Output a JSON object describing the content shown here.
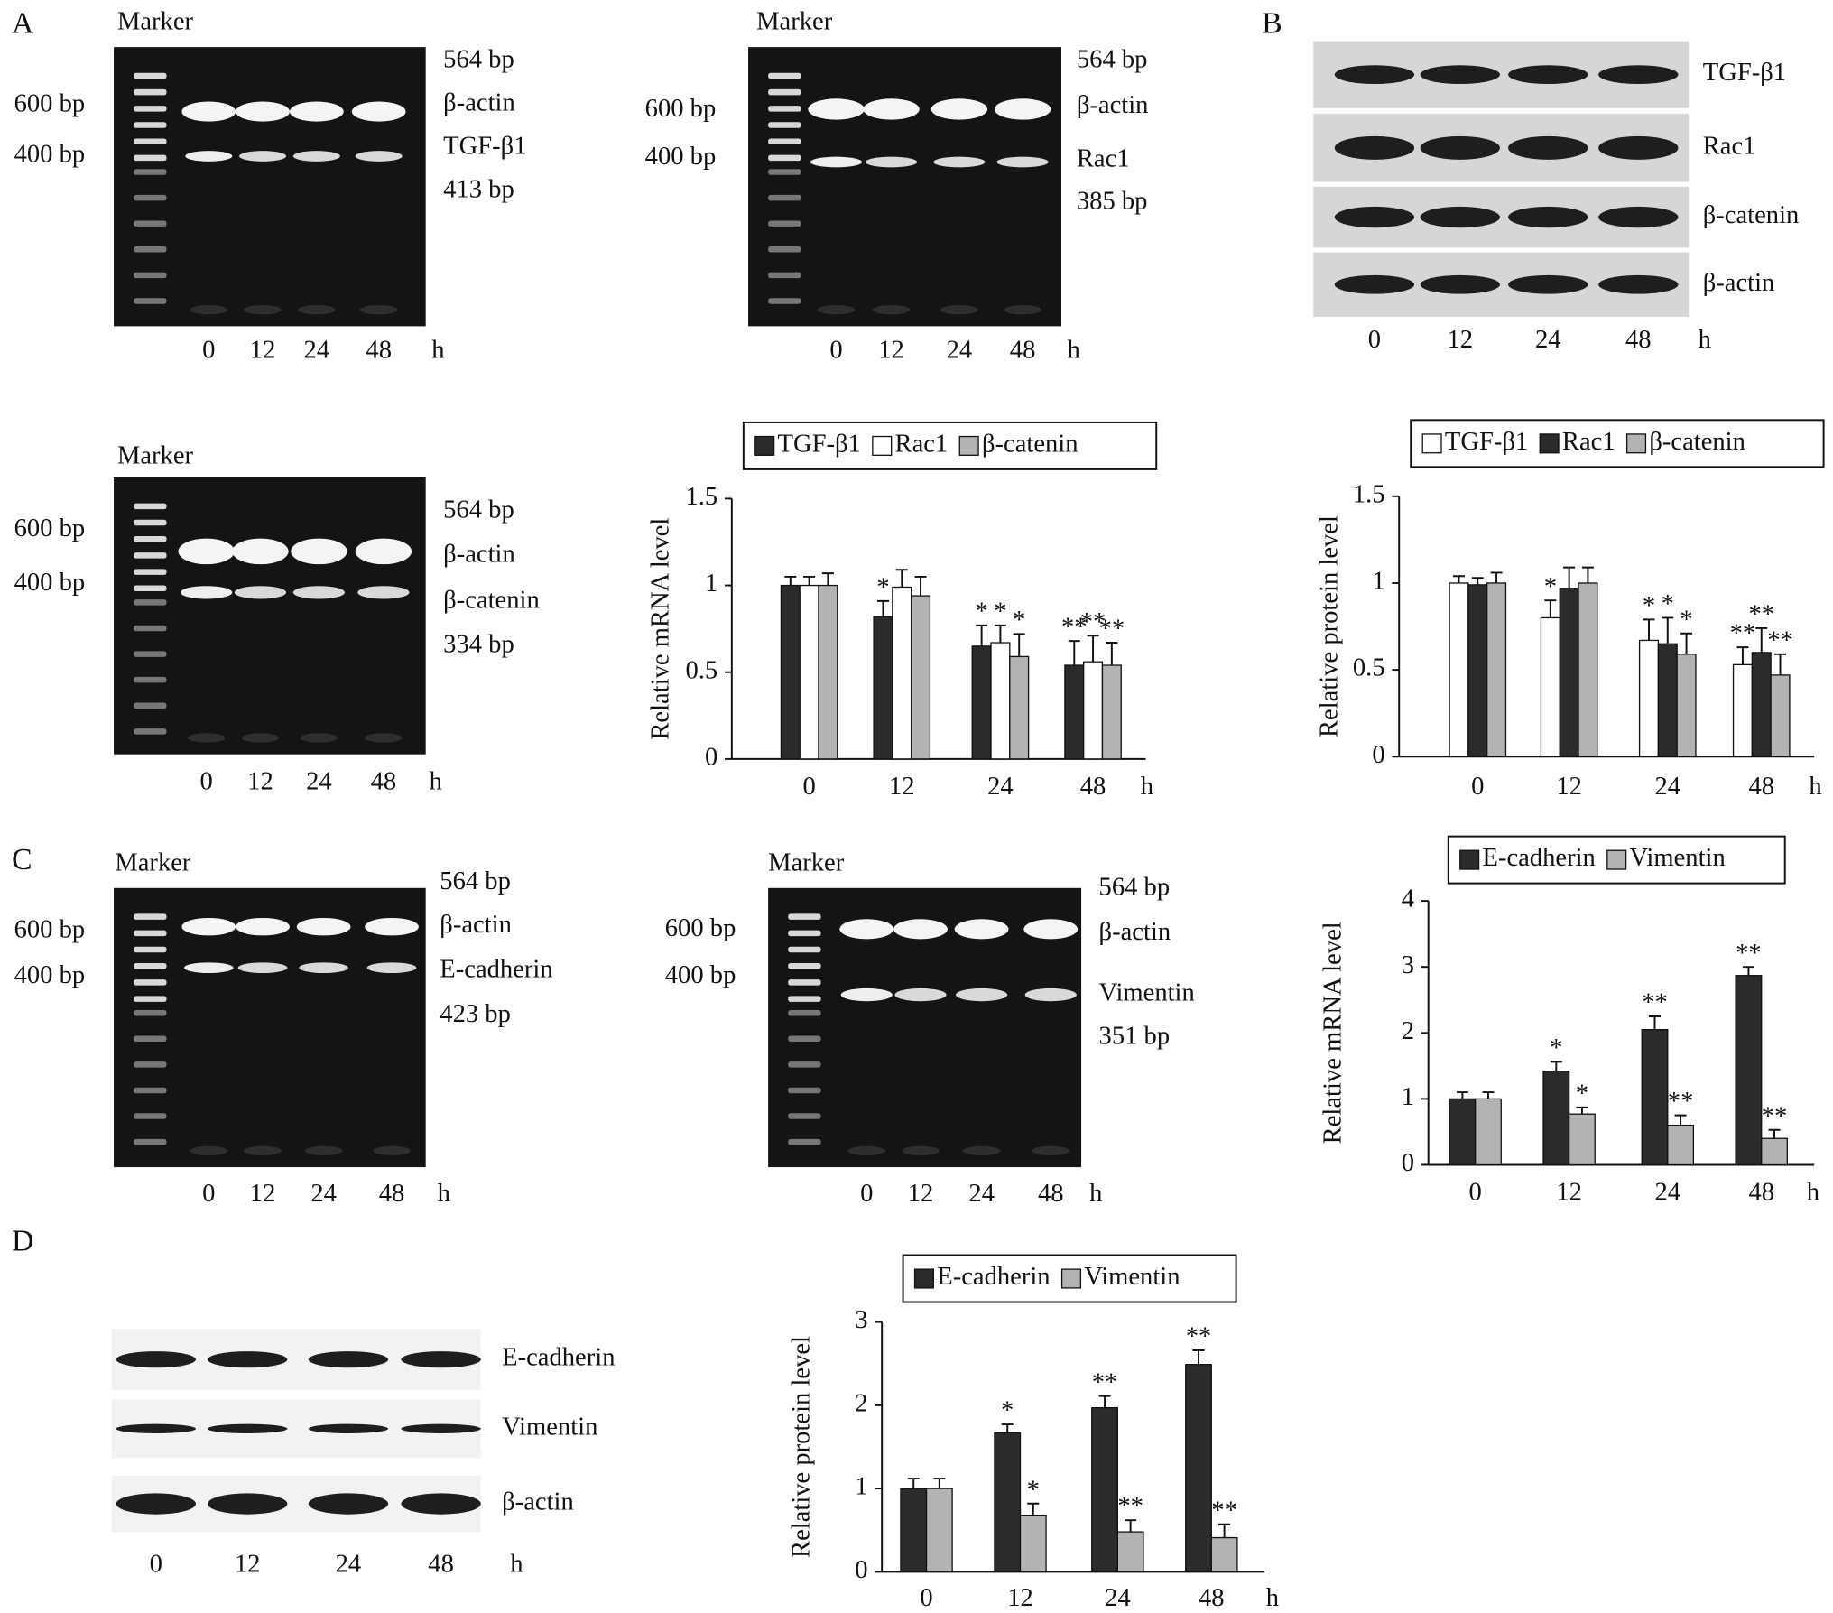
{
  "figure": {
    "panels": [
      "A",
      "B",
      "C",
      "D"
    ],
    "gels": [
      {
        "marker": "Marker",
        "left_labels": [
          "600 bp",
          "400 bp"
        ],
        "right_labels": [
          "564 bp",
          "β-actin",
          "TGF-β1",
          "413 bp"
        ],
        "lanes": [
          "0",
          "12",
          "24",
          "48"
        ],
        "unit": "h"
      },
      {
        "marker": "Marker",
        "left_labels": [
          "600 bp",
          "400 bp"
        ],
        "right_labels": [
          "564 bp",
          "β-actin",
          "Rac1",
          "385 bp"
        ],
        "lanes": [
          "0",
          "12",
          "24",
          "48"
        ],
        "unit": "h"
      },
      {
        "marker": "Marker",
        "left_labels": [
          "600 bp",
          "400 bp"
        ],
        "right_labels": [
          "564 bp",
          "β-actin",
          "β-catenin",
          "334 bp"
        ],
        "lanes": [
          "0",
          "12",
          "24",
          "48"
        ],
        "unit": "h"
      },
      {
        "marker": "Marker",
        "left_labels": [
          "600 bp",
          "400 bp"
        ],
        "right_labels": [
          "564 bp",
          "β-actin",
          "E-cadherin",
          "423 bp"
        ],
        "lanes": [
          "0",
          "12",
          "24",
          "48"
        ],
        "unit": "h"
      },
      {
        "marker": "Marker",
        "left_labels": [
          "600 bp",
          "400 bp"
        ],
        "right_labels": [
          "564 bp",
          "β-actin",
          "Vimentin",
          "351 bp"
        ],
        "lanes": [
          "0",
          "12",
          "24",
          "48"
        ],
        "unit": "h"
      }
    ],
    "westerns": [
      {
        "labels": [
          "TGF-β1",
          "Rac1",
          "β-catenin",
          "β-actin"
        ],
        "lanes": [
          "0",
          "12",
          "24",
          "48"
        ],
        "unit": "h"
      },
      {
        "labels": [
          "E-cadherin",
          "Vimentin",
          "β-actin"
        ],
        "lanes": [
          "0",
          "12",
          "24",
          "48"
        ],
        "unit": "h"
      }
    ]
  },
  "chart_data": [
    {
      "type": "bar",
      "ylabel": "Relative mRNA level",
      "xlabel": "h",
      "categories": [
        "0",
        "12",
        "24",
        "48"
      ],
      "ylim": [
        0,
        1.5
      ],
      "yticks": [
        0,
        0.5,
        1,
        1.5
      ],
      "series": [
        {
          "name": "TGF-β1",
          "color": "#2b2b2b",
          "values": [
            1.0,
            0.82,
            0.65,
            0.54
          ],
          "errors": [
            0.05,
            0.09,
            0.12,
            0.14
          ],
          "significance": [
            null,
            "*",
            "*",
            "**"
          ]
        },
        {
          "name": "Rac1",
          "color": "#ffffff",
          "values": [
            1.0,
            0.99,
            0.67,
            0.56
          ],
          "errors": [
            0.05,
            0.1,
            0.1,
            0.15
          ],
          "significance": [
            null,
            null,
            "*",
            "**"
          ]
        },
        {
          "name": "β-catenin",
          "color": "#b3b3b3",
          "values": [
            1.0,
            0.94,
            0.59,
            0.54
          ],
          "errors": [
            0.07,
            0.11,
            0.13,
            0.13
          ],
          "significance": [
            null,
            null,
            "*",
            "**"
          ]
        }
      ]
    },
    {
      "type": "bar",
      "ylabel": "Relative protein level",
      "xlabel": "h",
      "categories": [
        "0",
        "12",
        "24",
        "48"
      ],
      "ylim": [
        0,
        1.5
      ],
      "yticks": [
        0,
        0.5,
        1,
        1.5
      ],
      "series": [
        {
          "name": "TGF-β1",
          "color": "#ffffff",
          "values": [
            1.0,
            0.8,
            0.67,
            0.53
          ],
          "errors": [
            0.04,
            0.1,
            0.12,
            0.1
          ],
          "significance": [
            null,
            "*",
            "*",
            "**"
          ]
        },
        {
          "name": "Rac1",
          "color": "#2b2b2b",
          "values": [
            0.99,
            0.97,
            0.65,
            0.6
          ],
          "errors": [
            0.04,
            0.12,
            0.15,
            0.14
          ],
          "significance": [
            null,
            null,
            "*",
            "**"
          ]
        },
        {
          "name": "β-catenin",
          "color": "#b3b3b3",
          "values": [
            1.0,
            1.0,
            0.59,
            0.47
          ],
          "errors": [
            0.06,
            0.09,
            0.12,
            0.12
          ],
          "significance": [
            null,
            null,
            "*",
            "**"
          ]
        }
      ]
    },
    {
      "type": "bar",
      "ylabel": "Relative mRNA level",
      "xlabel": "h",
      "categories": [
        "0",
        "12",
        "24",
        "48"
      ],
      "ylim": [
        0,
        4
      ],
      "yticks": [
        0,
        1,
        2,
        3,
        4
      ],
      "series": [
        {
          "name": "E-cadherin",
          "color": "#2b2b2b",
          "values": [
            1.0,
            1.42,
            2.05,
            2.87
          ],
          "errors": [
            0.1,
            0.14,
            0.2,
            0.13
          ],
          "significance": [
            null,
            "*",
            "**",
            "**"
          ]
        },
        {
          "name": "Vimentin",
          "color": "#b3b3b3",
          "values": [
            1.0,
            0.77,
            0.6,
            0.4
          ],
          "errors": [
            0.1,
            0.1,
            0.15,
            0.13
          ],
          "significance": [
            null,
            "*",
            "**",
            "**"
          ]
        }
      ]
    },
    {
      "type": "bar",
      "ylabel": "Relative protein level",
      "xlabel": "h",
      "categories": [
        "0",
        "12",
        "24",
        "48"
      ],
      "ylim": [
        0,
        3
      ],
      "yticks": [
        0,
        1,
        2,
        3
      ],
      "series": [
        {
          "name": "E-cadherin",
          "color": "#2b2b2b",
          "values": [
            1.0,
            1.67,
            1.97,
            2.49
          ],
          "errors": [
            0.12,
            0.1,
            0.14,
            0.17
          ],
          "significance": [
            null,
            "*",
            "**",
            "**"
          ]
        },
        {
          "name": "Vimentin",
          "color": "#b3b3b3",
          "values": [
            1.0,
            0.68,
            0.48,
            0.41
          ],
          "errors": [
            0.12,
            0.14,
            0.14,
            0.16
          ],
          "significance": [
            null,
            "*",
            "**",
            "**"
          ]
        }
      ]
    }
  ]
}
